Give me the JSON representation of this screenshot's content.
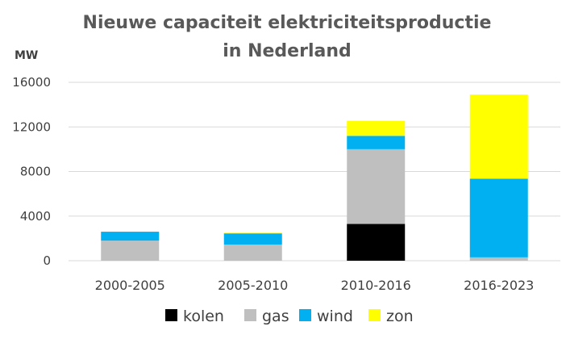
{
  "chart_data": {
    "type": "bar",
    "stacked": true,
    "title_lines": [
      "Nieuwe capaciteit elektriciteitsproductie",
      "in Nederland"
    ],
    "ylabel": "MW",
    "xlabel": "",
    "ylim": [
      0,
      16000
    ],
    "yticks": [
      "0",
      "4000",
      "8000",
      "12000",
      "16000"
    ],
    "grid": true,
    "legend_position": "bottom",
    "categories": [
      "2000-2005",
      "2005-2010",
      "2010-2016",
      "2016-2023"
    ],
    "series": [
      {
        "name": "kolen",
        "color": "#000000",
        "values": [
          0,
          0,
          3300,
          0
        ]
      },
      {
        "name": "gas",
        "color": "#bfbfbf",
        "values": [
          1800,
          1450,
          6700,
          300
        ]
      },
      {
        "name": "wind",
        "color": "#00b0f0",
        "values": [
          800,
          1000,
          1200,
          7050
        ]
      },
      {
        "name": "zon",
        "color": "#ffff00",
        "values": [
          0,
          50,
          1350,
          7550
        ]
      }
    ]
  }
}
